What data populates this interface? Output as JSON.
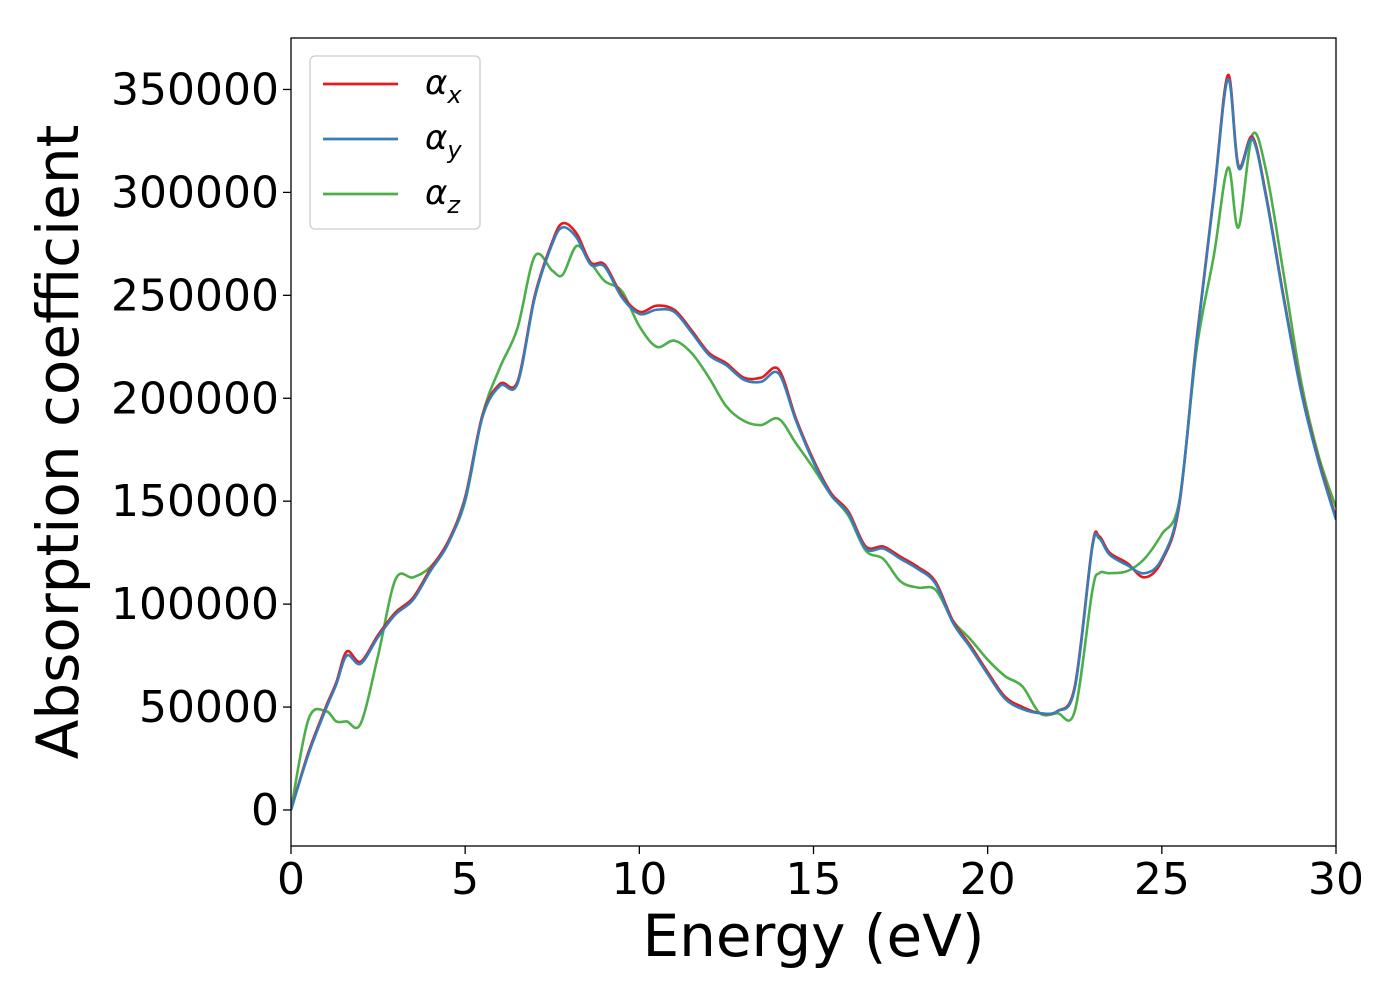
{
  "chart_data": {
    "type": "line",
    "title": "",
    "xlabel": "Energy (eV)",
    "ylabel": "Absorption coefficient",
    "xlim": [
      0,
      30
    ],
    "ylim": [
      -17500,
      375000
    ],
    "x_ticks": [
      0,
      5,
      10,
      15,
      20,
      25,
      30
    ],
    "x_tick_labels": [
      "0",
      "5",
      "10",
      "15",
      "20",
      "25",
      "30"
    ],
    "y_ticks": [
      0,
      50000,
      100000,
      150000,
      200000,
      250000,
      300000,
      350000
    ],
    "y_tick_labels": [
      "0",
      "50000",
      "100000",
      "150000",
      "200000",
      "250000",
      "300000",
      "350000"
    ],
    "grid": false,
    "legend_position": "top-left",
    "x": [
      0,
      0.5,
      1,
      1.3,
      1.6,
      2,
      2.5,
      3,
      3.5,
      4,
      4.5,
      5,
      5.5,
      6,
      6.5,
      7,
      7.5,
      7.8,
      8.2,
      8.6,
      9,
      9.5,
      10,
      10.5,
      11,
      11.5,
      12,
      12.5,
      13,
      13.5,
      14,
      14.5,
      15,
      15.5,
      16,
      16.5,
      17,
      17.5,
      18,
      18.5,
      19,
      19.5,
      20,
      20.5,
      21,
      21.5,
      22,
      22.5,
      23,
      23.2,
      23.5,
      24,
      24.5,
      25,
      25.5,
      26,
      26.5,
      26.9,
      27.2,
      27.6,
      28,
      28.5,
      29,
      29.5,
      30
    ],
    "series": [
      {
        "name": "α_x",
        "color": "#e41a1c",
        "values": [
          0,
          28000,
          50000,
          62000,
          77000,
          72000,
          85000,
          96000,
          103000,
          117000,
          130000,
          152000,
          192000,
          207000,
          208000,
          250000,
          276000,
          285000,
          280000,
          266000,
          265000,
          250000,
          242000,
          245000,
          243000,
          233000,
          222000,
          217000,
          210000,
          210000,
          214000,
          190000,
          170000,
          154000,
          145000,
          128000,
          128000,
          123000,
          118000,
          111000,
          92000,
          80000,
          67000,
          55000,
          50000,
          47000,
          48000,
          60000,
          128000,
          133000,
          125000,
          120000,
          113000,
          121000,
          148000,
          229000,
          300000,
          357000,
          313000,
          327000,
          298000,
          249000,
          204000,
          170000,
          142000
        ]
      },
      {
        "name": "α_y",
        "color": "#377eb8",
        "values": [
          0,
          27000,
          49000,
          61000,
          75000,
          71000,
          84000,
          95000,
          102000,
          116000,
          129000,
          151000,
          191000,
          206000,
          207000,
          249000,
          275000,
          283000,
          278000,
          265000,
          264000,
          249000,
          241000,
          243000,
          242000,
          232000,
          221000,
          216000,
          209000,
          208000,
          212000,
          189000,
          169000,
          153000,
          144000,
          127000,
          127000,
          122000,
          117000,
          110000,
          91000,
          79000,
          66000,
          54000,
          49000,
          47000,
          48000,
          59000,
          127000,
          132000,
          124000,
          119000,
          115000,
          122000,
          149000,
          228000,
          299000,
          355000,
          312000,
          326000,
          297000,
          248000,
          203000,
          169000,
          141000
        ]
      },
      {
        "name": "α_z",
        "color": "#4daf4a",
        "values": [
          0,
          44000,
          48000,
          43000,
          43000,
          42000,
          75000,
          112000,
          113000,
          118000,
          130000,
          150000,
          192000,
          215000,
          234000,
          269000,
          262000,
          260000,
          274000,
          266000,
          257000,
          252000,
          235000,
          225000,
          228000,
          222000,
          210000,
          196000,
          189000,
          187000,
          190000,
          178000,
          166000,
          153000,
          143000,
          126000,
          122000,
          111000,
          108000,
          107000,
          92000,
          83000,
          73000,
          65000,
          60000,
          47000,
          47000,
          48000,
          106000,
          115000,
          115000,
          116000,
          122000,
          134000,
          150000,
          224000,
          270000,
          312000,
          283000,
          328000,
          310000,
          260000,
          208000,
          172000,
          147000
        ]
      }
    ]
  },
  "legend": {
    "entries": [
      {
        "symbol": "α",
        "sub": "x"
      },
      {
        "symbol": "α",
        "sub": "y"
      },
      {
        "symbol": "α",
        "sub": "z"
      }
    ]
  }
}
